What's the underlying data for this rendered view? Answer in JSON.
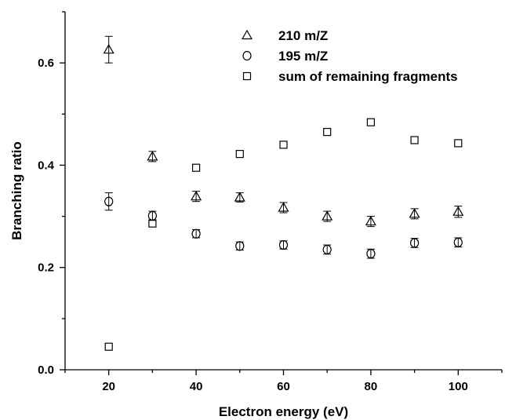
{
  "chart_data": {
    "type": "scatter",
    "title": "",
    "xlabel": "Electron energy (eV)",
    "ylabel": "Branching ratio",
    "xlim": [
      10,
      110
    ],
    "ylim": [
      0.0,
      0.7
    ],
    "x_ticks": [
      20,
      40,
      60,
      80,
      100
    ],
    "y_ticks": [
      0.0,
      0.2,
      0.4,
      0.6
    ],
    "x_tick_labels": [
      "20",
      "40",
      "60",
      "80",
      "100"
    ],
    "y_tick_labels": [
      "0.0",
      "0.2",
      "0.4",
      "0.6"
    ],
    "grid": false,
    "legend_position": "top-right",
    "series": [
      {
        "name": "210 m/Z",
        "marker": "triangle",
        "x": [
          20,
          30,
          40,
          50,
          60,
          70,
          80,
          90,
          100
        ],
        "y": [
          0.626,
          0.417,
          0.339,
          0.337,
          0.317,
          0.3,
          0.29,
          0.305,
          0.309
        ],
        "err": [
          0.026,
          0.01,
          0.01,
          0.009,
          0.01,
          0.01,
          0.01,
          0.01,
          0.011
        ]
      },
      {
        "name": "195 m/Z",
        "marker": "circle",
        "x": [
          20,
          30,
          40,
          50,
          60,
          70,
          80,
          90,
          100
        ],
        "y": [
          0.329,
          0.301,
          0.266,
          0.242,
          0.244,
          0.235,
          0.227,
          0.248,
          0.249
        ],
        "err": [
          0.017,
          0.009,
          0.008,
          0.008,
          0.008,
          0.009,
          0.009,
          0.009,
          0.009
        ]
      },
      {
        "name": "sum of remaining fragments",
        "marker": "square",
        "x": [
          20,
          30,
          40,
          50,
          60,
          70,
          80,
          90,
          100
        ],
        "y": [
          0.045,
          0.286,
          0.395,
          0.422,
          0.44,
          0.465,
          0.484,
          0.449,
          0.443
        ],
        "err": []
      }
    ]
  }
}
